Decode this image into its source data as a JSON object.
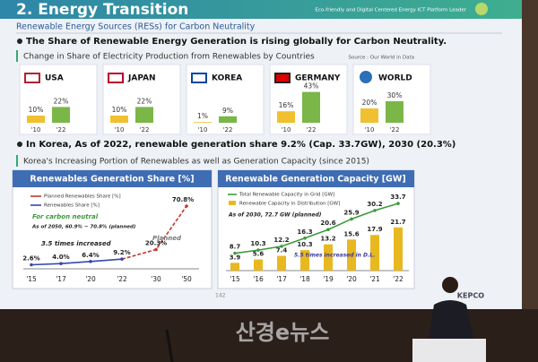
{
  "header": {
    "title": "2. Energy Transition",
    "tagline": "Eco-friendly and Digital Centered Energy ICT Platform Leader"
  },
  "section": "Renewable Energy Sources (RESs) for Carbon Neutrality",
  "bullet_1": "The Share of Renewable Energy Generation is rising globally for Carbon Neutrality.",
  "box_1": "Change in Share of Electricity Production from Renewables by Countries",
  "source": "Source : Our World in Data",
  "countries": [
    {
      "name": "USA",
      "years": [
        "'10",
        "'22"
      ],
      "values": [
        10,
        22
      ],
      "value_labels": [
        "10%",
        "22%"
      ]
    },
    {
      "name": "JAPAN",
      "years": [
        "'10",
        "'22"
      ],
      "values": [
        10,
        22
      ],
      "value_labels": [
        "10%",
        "22%"
      ]
    },
    {
      "name": "KOREA",
      "years": [
        "'10",
        "'22"
      ],
      "values": [
        1,
        9
      ],
      "value_labels": [
        "1%",
        "9%"
      ]
    },
    {
      "name": "GERMANY",
      "years": [
        "'10",
        "'22"
      ],
      "values": [
        16,
        43
      ],
      "value_labels": [
        "16%",
        "43%"
      ]
    },
    {
      "name": "WORLD",
      "years": [
        "'10",
        "'22"
      ],
      "values": [
        20,
        30
      ],
      "value_labels": [
        "20%",
        "30%"
      ]
    }
  ],
  "bullet_2": "In Korea, As of 2022, renewable generation share 9.2% (Cap. 33.7GW), 2030 (20.3%)",
  "box_2": "Korea's Increasing Portion of Renewables as well as Generation Capacity (since 2015)",
  "share_chart": {
    "title": "Renewables Generation Share [%]",
    "categories": [
      "'15",
      "'17",
      "'20",
      "'22",
      "'30",
      "'50"
    ],
    "ylim": [
      0,
      75
    ],
    "series": [
      {
        "name": "Planned Renewables Share [%]",
        "color": "#c0392b",
        "dashed": true,
        "values": [
          null,
          null,
          null,
          9.2,
          20.3,
          70.8
        ],
        "value_labels": [
          null,
          null,
          null,
          null,
          "20.3%",
          "70.8%"
        ]
      },
      {
        "name": "Renewables Share [%]",
        "color": "#3548b0",
        "dashed": false,
        "values": [
          2.6,
          4.0,
          6.4,
          9.2,
          null,
          null
        ],
        "value_labels": [
          "2.6%",
          "4.0%",
          "6.4%",
          "9.2%",
          null,
          null
        ]
      }
    ],
    "annotations": [
      "For carbon neutral",
      "As of 2050, 60.9% ~ 70.8% (planned)",
      "3.5 times increased",
      "Planned"
    ]
  },
  "capacity_chart": {
    "title": "Renewable Generation Capacity [GW]",
    "categories": [
      "'15",
      "'16",
      "'17",
      "'18",
      "'19",
      "'20",
      "'21",
      "'22"
    ],
    "ylim": [
      0,
      36
    ],
    "line": {
      "name": "Total Renewable Capacity in Grid [GW]",
      "color": "#3c9a3c",
      "values": [
        8.7,
        10.3,
        12.2,
        16.3,
        20.6,
        25.9,
        30.2,
        33.7
      ]
    },
    "bars": {
      "name": "Renewable Capacity in Distribution [GW]",
      "color": "#e8b820",
      "values": [
        3.9,
        5.6,
        7.4,
        10.3,
        13.2,
        15.6,
        17.9,
        21.7
      ]
    },
    "annotations": [
      "As of 2030, 72.7 GW (planned)",
      "5.5 times increased in D.L."
    ]
  },
  "footer": {
    "page": "142",
    "logo": "KEPCO"
  },
  "watermark": "산경e뉴스"
}
